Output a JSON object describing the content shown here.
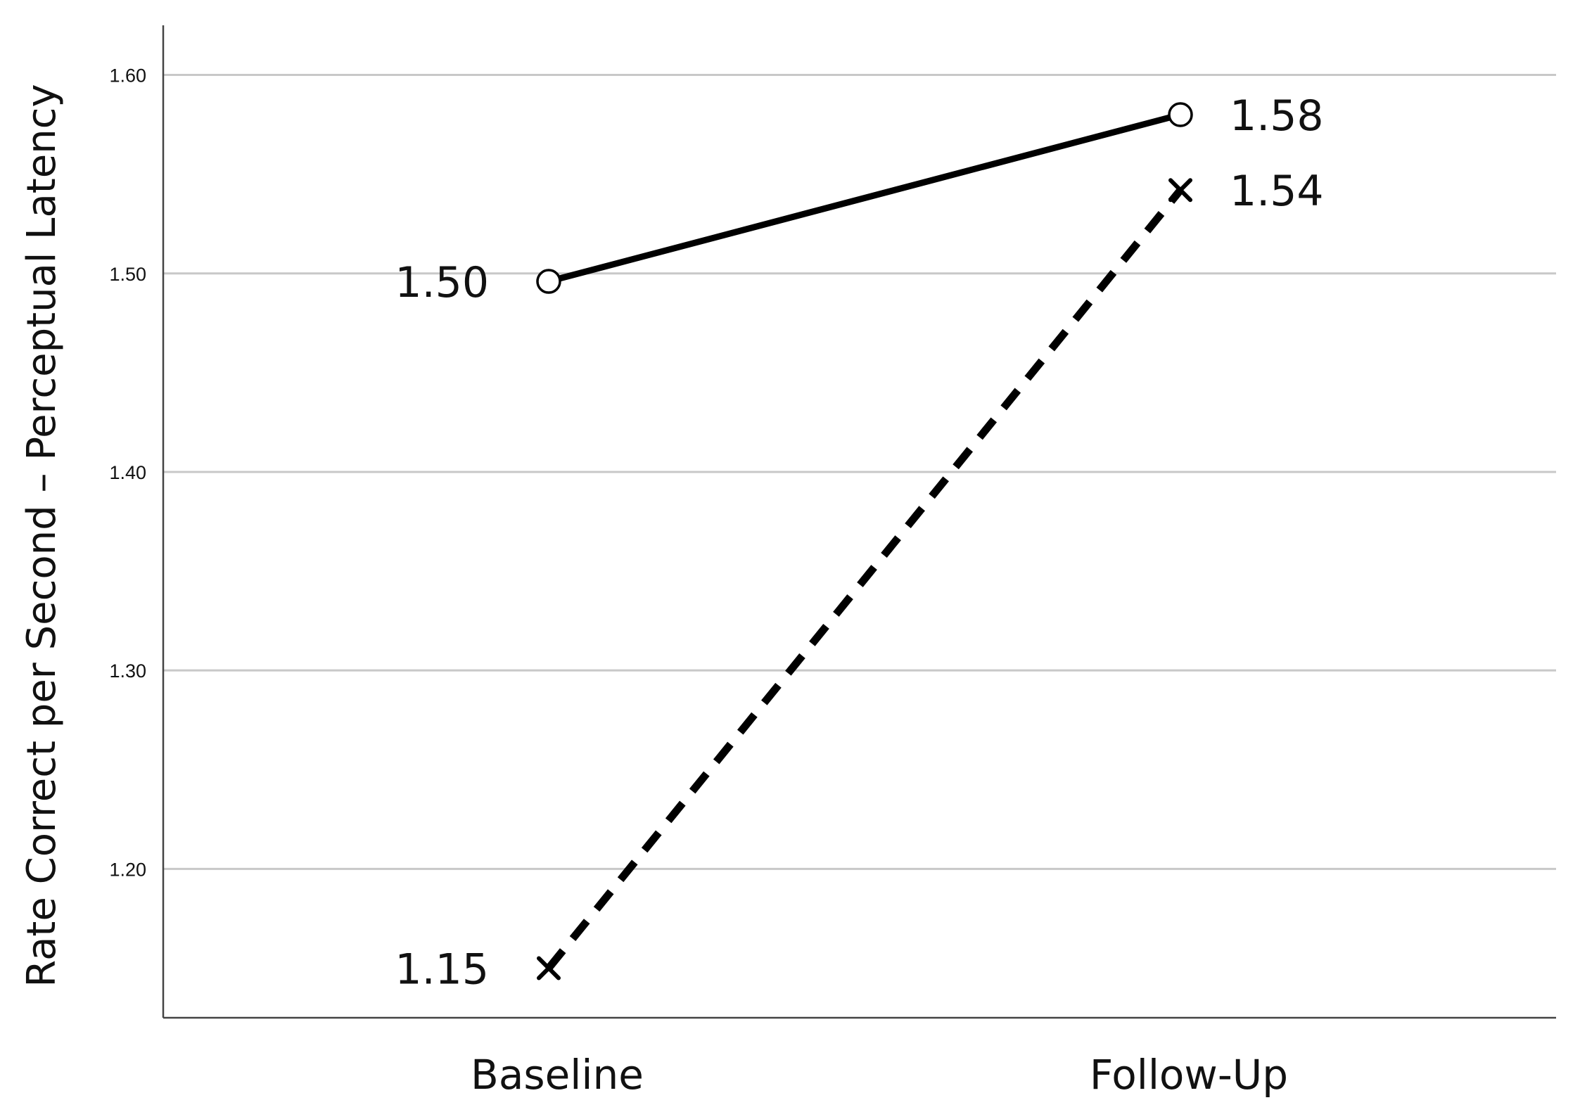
{
  "chart_data": {
    "type": "line",
    "title": "",
    "xlabel": "",
    "ylabel": "Rate Correct per Second – Perceptual Latency",
    "categories": [
      "Baseline",
      "Follow-Up"
    ],
    "ylim": [
      1.125,
      1.625
    ],
    "yticks": [
      1.2,
      1.3,
      1.4,
      1.5,
      1.6
    ],
    "ytick_labels": [
      "1.20",
      "1.30",
      "1.40",
      "1.50",
      "1.60"
    ],
    "grid": true,
    "legend": "none",
    "series": [
      {
        "values": [
          1.496,
          1.58
        ],
        "data_labels": [
          "1.50",
          "1.58"
        ],
        "line_style": "solid",
        "marker": "circle",
        "color": "#000000"
      },
      {
        "values": [
          1.15,
          1.542
        ],
        "data_labels": [
          "1.15",
          "1.54"
        ],
        "line_style": "dashed",
        "marker": "x",
        "color": "#000000"
      }
    ],
    "colors": {
      "gridline": "#c8c8c8",
      "axis": "#444444",
      "text": "#111111"
    }
  }
}
